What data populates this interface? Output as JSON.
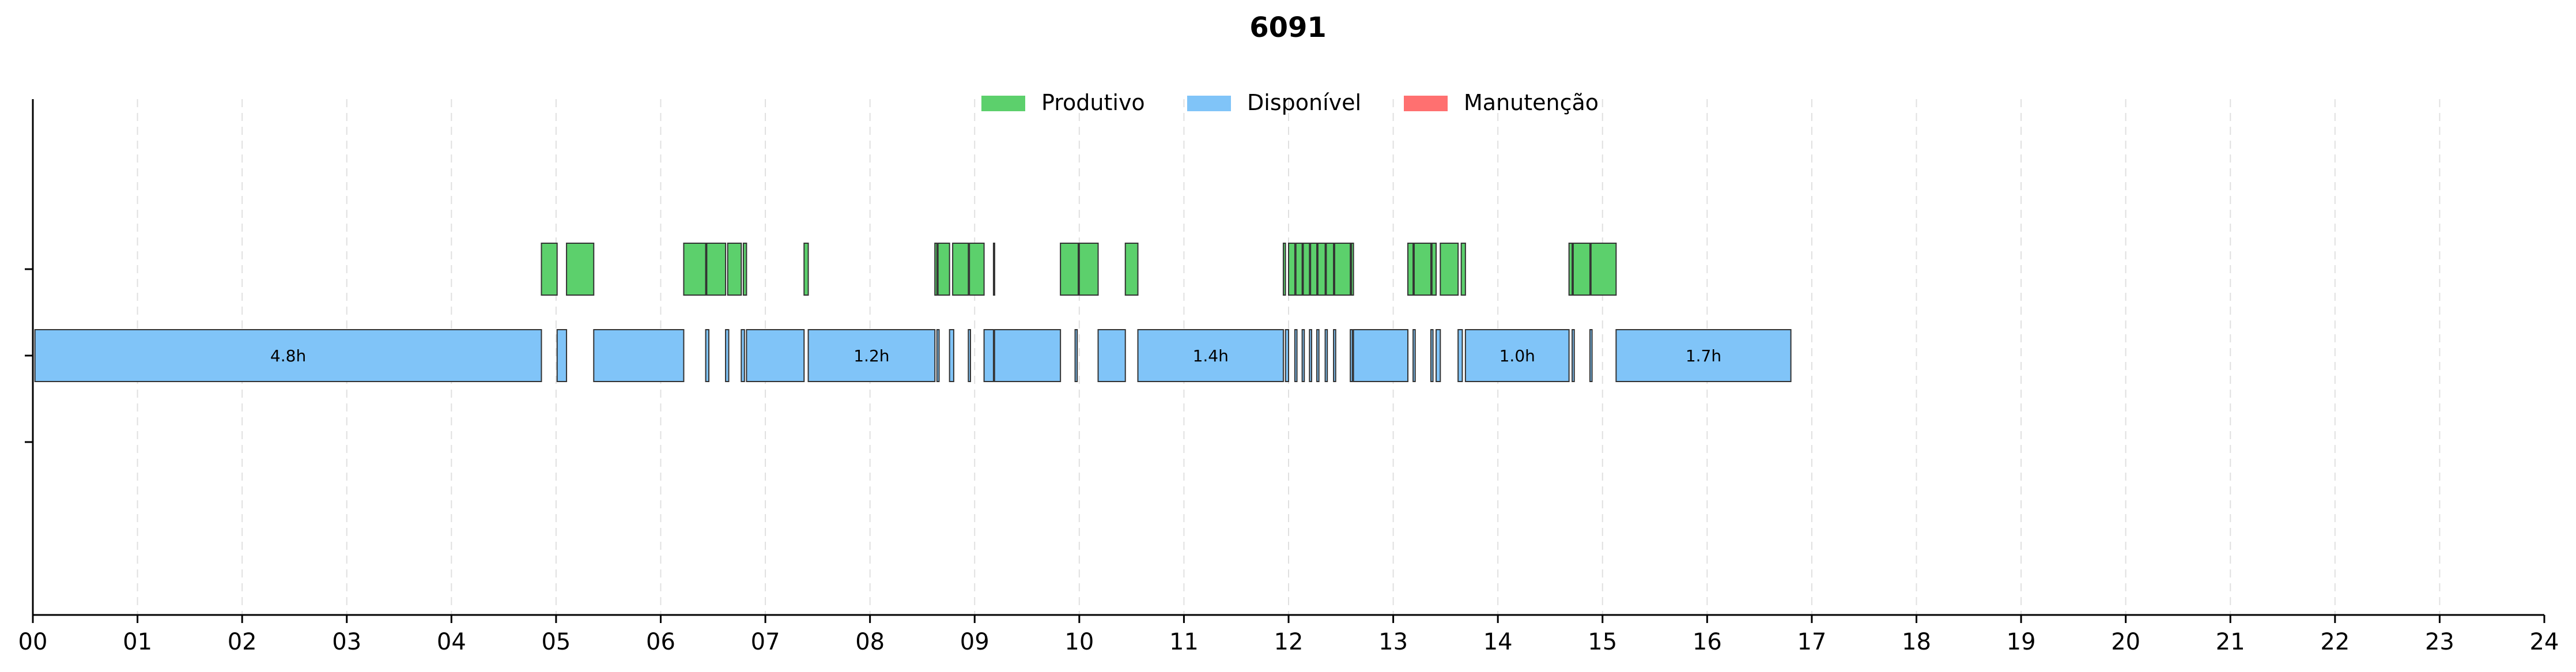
{
  "chart_data": {
    "type": "gantt",
    "title": "6091",
    "xlabel": "",
    "ylabel": "",
    "xlim": [
      0,
      24
    ],
    "x_tick_labels": [
      "00",
      "01",
      "02",
      "03",
      "04",
      "05",
      "06",
      "07",
      "08",
      "09",
      "10",
      "11",
      "12",
      "13",
      "14",
      "15",
      "16",
      "17",
      "18",
      "19",
      "20",
      "21",
      "22",
      "23",
      "24"
    ],
    "grid": true,
    "legend_position": "top-center",
    "colors": {
      "Produtivo": "#5cd06c",
      "Disponível": "#80c4f8",
      "Manutenção": "#ff7070"
    },
    "legend": [
      {
        "name": "Produtivo",
        "color": "#5cd06c"
      },
      {
        "name": "Disponível",
        "color": "#80c4f8"
      },
      {
        "name": "Manutenção",
        "color": "#ff7070"
      }
    ],
    "series": [
      {
        "name": "Produtivo",
        "intervals": [
          {
            "start": 4.86,
            "end": 5.01
          },
          {
            "start": 5.1,
            "end": 5.36
          },
          {
            "start": 6.22,
            "end": 6.43
          },
          {
            "start": 6.44,
            "end": 6.62
          },
          {
            "start": 6.64,
            "end": 6.77
          },
          {
            "start": 6.79,
            "end": 6.82
          },
          {
            "start": 7.37,
            "end": 7.41
          },
          {
            "start": 8.62,
            "end": 8.64
          },
          {
            "start": 8.65,
            "end": 8.76
          },
          {
            "start": 8.79,
            "end": 8.94
          },
          {
            "start": 8.95,
            "end": 9.09
          },
          {
            "start": 9.18,
            "end": 9.19
          },
          {
            "start": 9.82,
            "end": 9.99
          },
          {
            "start": 10.0,
            "end": 10.18
          },
          {
            "start": 10.44,
            "end": 10.56
          },
          {
            "start": 11.95,
            "end": 11.97
          },
          {
            "start": 12.0,
            "end": 12.06
          },
          {
            "start": 12.07,
            "end": 12.13
          },
          {
            "start": 12.14,
            "end": 12.2
          },
          {
            "start": 12.21,
            "end": 12.27
          },
          {
            "start": 12.28,
            "end": 12.35
          },
          {
            "start": 12.36,
            "end": 12.43
          },
          {
            "start": 12.44,
            "end": 12.59
          },
          {
            "start": 12.6,
            "end": 12.62
          },
          {
            "start": 13.14,
            "end": 13.19
          },
          {
            "start": 13.2,
            "end": 13.36
          },
          {
            "start": 13.37,
            "end": 13.41
          },
          {
            "start": 13.45,
            "end": 13.62
          },
          {
            "start": 13.65,
            "end": 13.69
          },
          {
            "start": 14.68,
            "end": 14.71
          },
          {
            "start": 14.72,
            "end": 14.88
          },
          {
            "start": 14.89,
            "end": 15.13
          }
        ]
      },
      {
        "name": "Disponível",
        "intervals": [
          {
            "start": 0.02,
            "end": 4.86,
            "label": "4.8h"
          },
          {
            "start": 5.01,
            "end": 5.1
          },
          {
            "start": 5.36,
            "end": 6.22
          },
          {
            "start": 6.43,
            "end": 6.46
          },
          {
            "start": 6.62,
            "end": 6.65
          },
          {
            "start": 6.77,
            "end": 6.8
          },
          {
            "start": 6.82,
            "end": 7.37
          },
          {
            "start": 7.41,
            "end": 8.62,
            "label": "1.2h"
          },
          {
            "start": 8.64,
            "end": 8.66
          },
          {
            "start": 8.76,
            "end": 8.8
          },
          {
            "start": 8.94,
            "end": 8.96
          },
          {
            "start": 9.09,
            "end": 9.18
          },
          {
            "start": 9.19,
            "end": 9.82
          },
          {
            "start": 9.96,
            "end": 9.98
          },
          {
            "start": 10.18,
            "end": 10.44
          },
          {
            "start": 10.56,
            "end": 11.95,
            "label": "1.4h"
          },
          {
            "start": 11.97,
            "end": 12.0
          },
          {
            "start": 12.06,
            "end": 12.08
          },
          {
            "start": 12.13,
            "end": 12.15
          },
          {
            "start": 12.2,
            "end": 12.22
          },
          {
            "start": 12.27,
            "end": 12.29
          },
          {
            "start": 12.35,
            "end": 12.37
          },
          {
            "start": 12.43,
            "end": 12.45
          },
          {
            "start": 12.59,
            "end": 12.61
          },
          {
            "start": 12.62,
            "end": 13.14
          },
          {
            "start": 13.19,
            "end": 13.21
          },
          {
            "start": 13.36,
            "end": 13.38
          },
          {
            "start": 13.41,
            "end": 13.45
          },
          {
            "start": 13.62,
            "end": 13.66
          },
          {
            "start": 13.69,
            "end": 14.68,
            "label": "1.0h"
          },
          {
            "start": 14.71,
            "end": 14.73
          },
          {
            "start": 14.88,
            "end": 14.9
          },
          {
            "start": 15.13,
            "end": 16.8,
            "label": "1.7h"
          }
        ]
      },
      {
        "name": "Manutenção",
        "intervals": []
      }
    ]
  }
}
